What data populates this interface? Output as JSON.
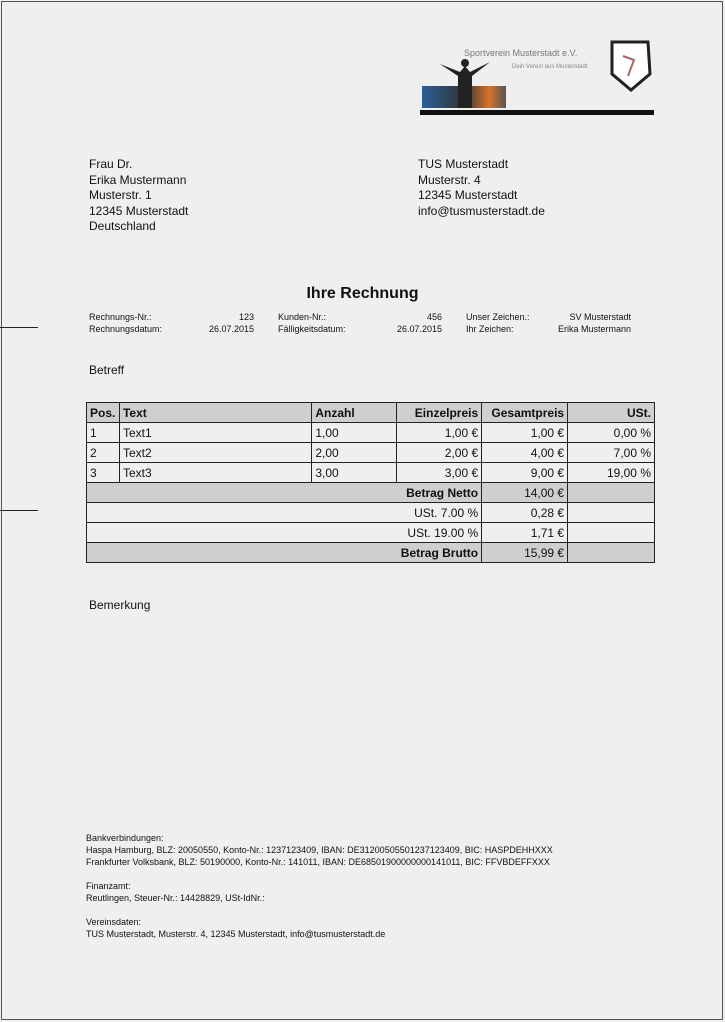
{
  "logo": {
    "title": "Sportverein Musterstadt e.V.",
    "subtitle": "Dein Verein aus Musterstadt"
  },
  "recipient": [
    "Frau Dr.",
    "Erika Mustermann",
    "Musterstr. 1",
    "12345 Musterstadt",
    "Deutschland"
  ],
  "sender": [
    "TUS Musterstadt",
    "Musterstr. 4",
    "12345 Musterstadt",
    "info@tusmusterstadt.de"
  ],
  "title": "Ihre Rechnung",
  "meta": {
    "rechnungsnr_label": "Rechnungs-Nr.:",
    "rechnungsnr": "123",
    "rechnungsdatum_label": "Rechnungsdatum:",
    "rechnungsdatum": "26.07.2015",
    "kundennr_label": "Kunden-Nr.:",
    "kundennr": "456",
    "faellig_label": "Fälligkeitsdatum:",
    "faellig": "26.07.2015",
    "unser_label": "Unser Zeichen.:",
    "unser": "SV Musterstadt",
    "ihr_label": "Ihr Zeichen:",
    "ihr": "Erika Mustermann"
  },
  "betreff": "Betreff",
  "table": {
    "headers": [
      "Pos.",
      "Text",
      "Anzahl",
      "Einzelpreis",
      "Gesamtpreis",
      "USt."
    ],
    "rows": [
      [
        "1",
        "Text1",
        "1,00",
        "1,00 €",
        "1,00 €",
        "0,00 %"
      ],
      [
        "2",
        "Text2",
        "2,00",
        "2,00 €",
        "4,00 €",
        "7,00 %"
      ],
      [
        "3",
        "Text3",
        "3,00",
        "3,00 €",
        "9,00 €",
        "19,00 %"
      ]
    ],
    "totals": [
      {
        "label": "Betrag Netto",
        "value": "14,00 €"
      },
      {
        "label": "USt. 7.00 %",
        "value": "0,28 €"
      },
      {
        "label": "USt. 19.00 %",
        "value": "1,71 €"
      },
      {
        "label": "Betrag Brutto",
        "value": "15,99 €"
      }
    ]
  },
  "bemerkung": "Bemerkung",
  "footer": {
    "bank_label": "Bankverbindungen:",
    "bank1": "Haspa Hamburg, BLZ: 20050550, Konto-Nr.: 1237123409, IBAN: DE31200505501237123409, BIC: HASPDEHHXXX",
    "bank2": "Frankfurter Volksbank, BLZ: 50190000, Konto-Nr.: 141011, IBAN: DE68501900000000141011, BIC: FFVBDEFFXXX",
    "finanz_label": "Finanzamt:",
    "finanz": "Reutlingen, Steuer-Nr.: 14428829, USt-IdNr.:",
    "verein_label": "Vereinsdaten:",
    "verein": "TUS Musterstadt, Musterstr. 4, 12345 Musterstadt, info@tusmusterstadt.de"
  }
}
